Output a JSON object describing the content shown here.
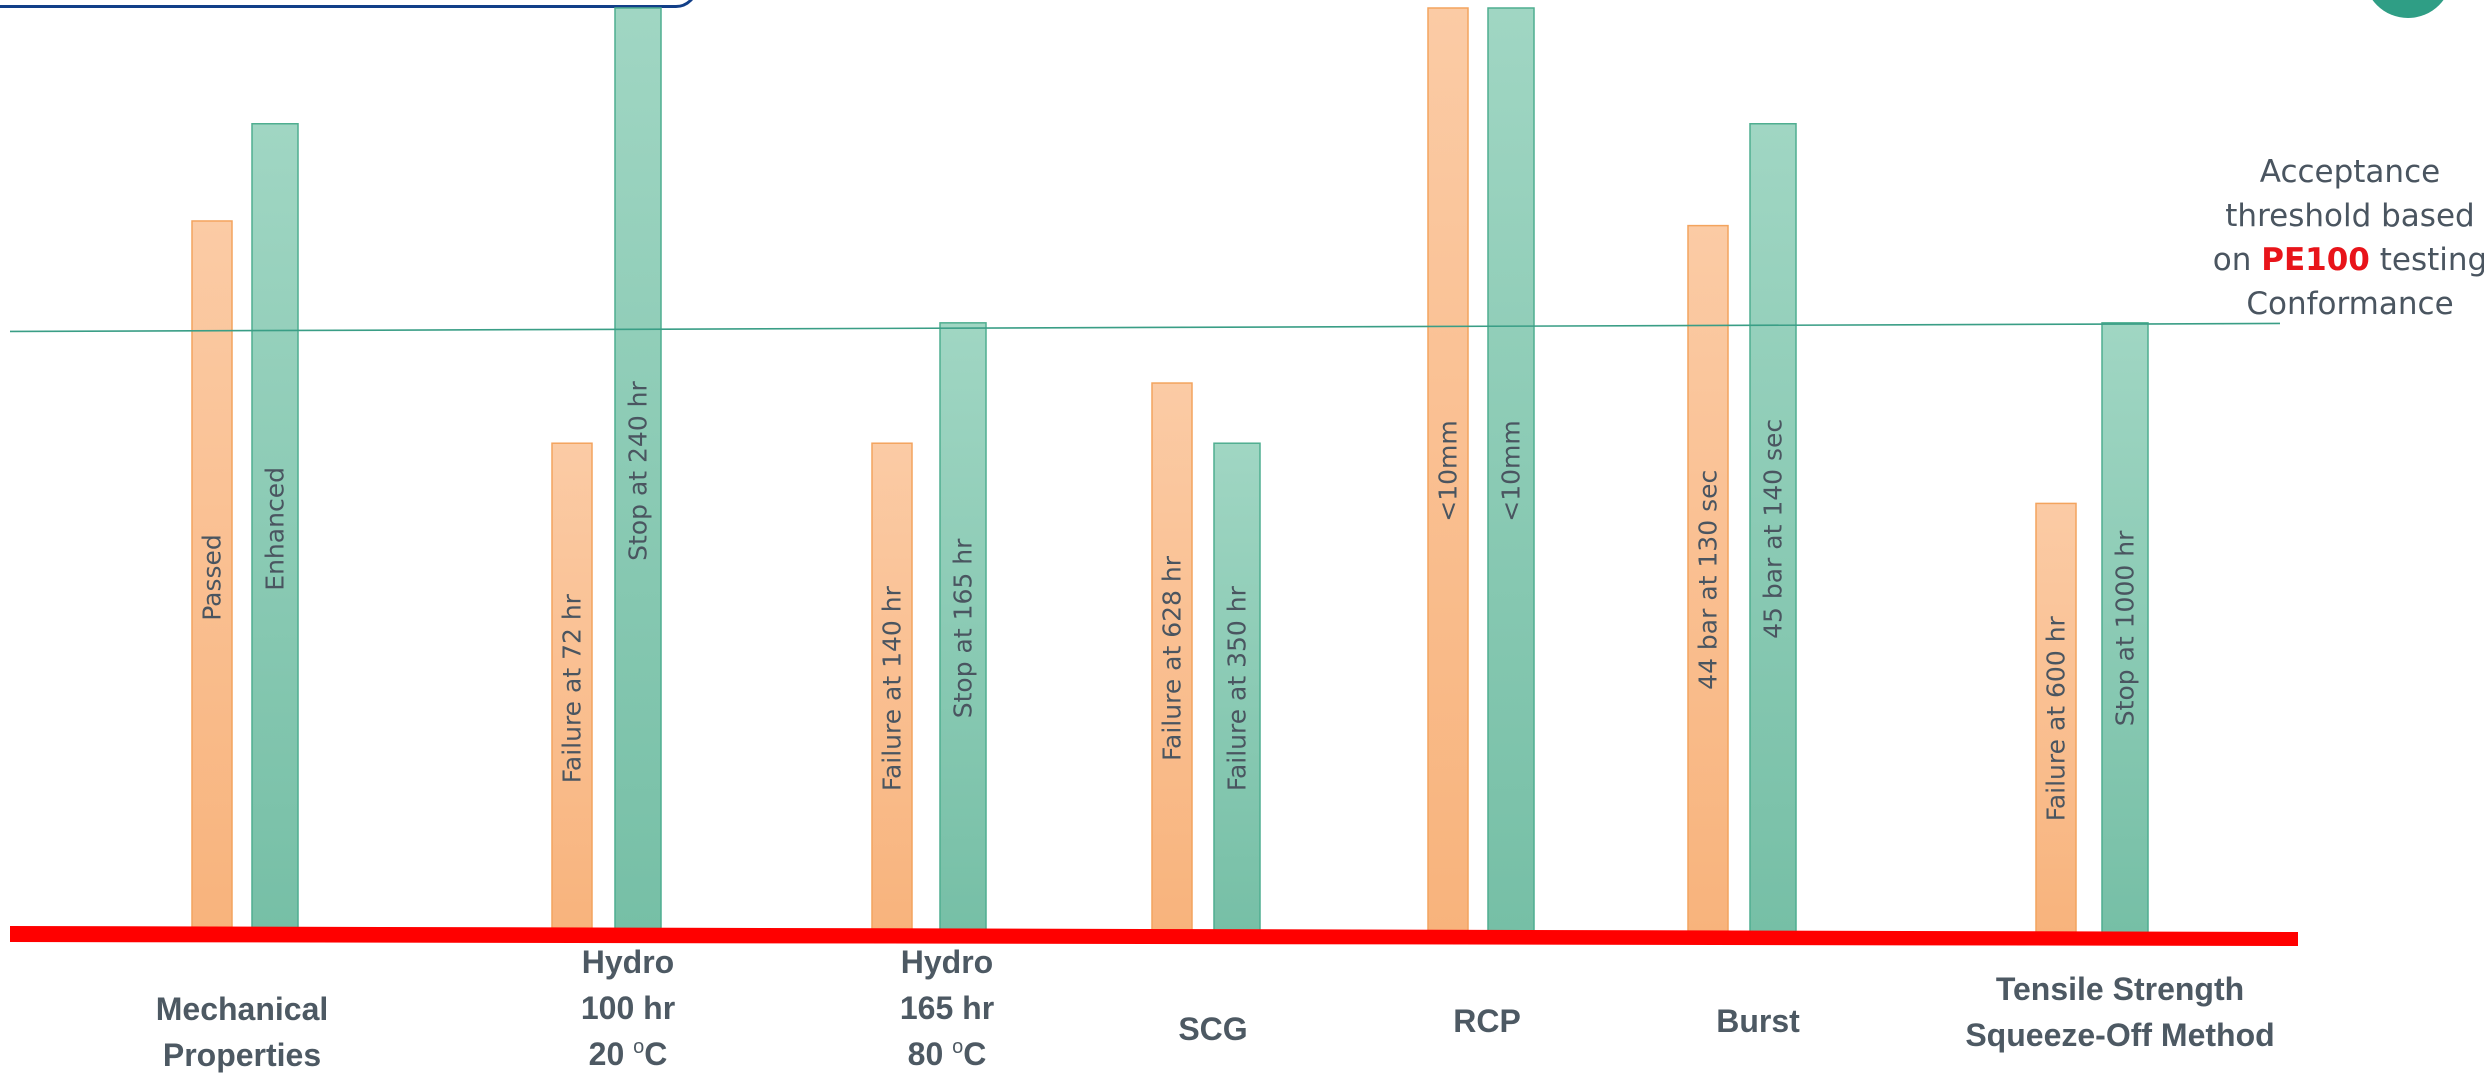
{
  "chart_data": {
    "type": "bar",
    "series": [
      {
        "name": "",
        "color": "#f8b984"
      },
      {
        "name": "",
        "color": "#86c8b1"
      }
    ],
    "categories": [
      {
        "label_lines": [
          "Mechanical",
          "Properties"
        ],
        "bars": [
          {
            "value": 0.77,
            "label": "Passed"
          },
          {
            "value": 0.875,
            "label": "Enhanced"
          }
        ]
      },
      {
        "label_lines": [
          "Hydro",
          "100 hr",
          "20 ",
          "C"
        ],
        "bars": [
          {
            "value": 0.53,
            "label": "Failure at 72 hr"
          },
          {
            "value": 1.0,
            "label": "Stop at 240 hr"
          }
        ]
      },
      {
        "label_lines": [
          "Hydro",
          "165 hr",
          "80 ",
          "C"
        ],
        "bars": [
          {
            "value": 0.53,
            "label": "Failure at 140 hr"
          },
          {
            "value": 0.66,
            "label": "Stop at 165 hr"
          }
        ]
      },
      {
        "label_lines": [
          "SCG"
        ],
        "bars": [
          {
            "value": 0.595,
            "label": "Failure at 628 hr"
          },
          {
            "value": 0.53,
            "label": "Failure at 350 hr"
          }
        ]
      },
      {
        "label_lines": [
          "RCP"
        ],
        "bars": [
          {
            "value": 1.0,
            "label": "<10mm"
          },
          {
            "value": 1.0,
            "label": "<10mm"
          }
        ]
      },
      {
        "label_lines": [
          "Burst"
        ],
        "bars": [
          {
            "value": 0.765,
            "label": "44 bar at 130 sec"
          },
          {
            "value": 0.875,
            "label": "45 bar at 140 sec"
          }
        ]
      },
      {
        "label_lines": [
          "Tensile Strength",
          "Squeeze-Off Method"
        ],
        "bars": [
          {
            "value": 0.465,
            "label": "Failure at 600 hr"
          },
          {
            "value": 0.66,
            "label": "Stop at 1000 hr"
          }
        ]
      }
    ],
    "degree_symbol": "o",
    "ylim": [
      0,
      1
    ],
    "threshold": {
      "value": 0.655,
      "label_lines": [
        "Acceptance",
        "threshold based"
      ],
      "label_pre": "on ",
      "label_emph": "PE100",
      "label_post": " testing",
      "label_last": "Conformance",
      "line_color": "#3a9e86",
      "emph_color": "#e8141a"
    },
    "baseline_color": "#ff0000",
    "grid": false,
    "legend": "none"
  }
}
